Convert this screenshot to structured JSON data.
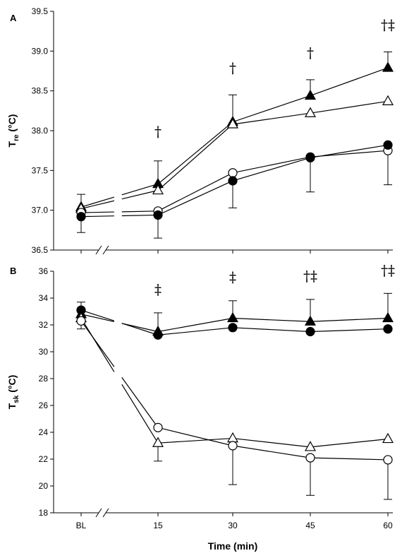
{
  "chart_data": [
    {
      "panel": "A",
      "type": "line",
      "ylabel": "T",
      "ylabel_sub": "re",
      "ylabel_unit": "(°C)",
      "ylim": [
        36.5,
        39.5
      ],
      "yticks": [
        "36.5",
        "37.0",
        "37.5",
        "38.0",
        "38.5",
        "39.0",
        "39.5"
      ],
      "categories": [
        "BL",
        "15",
        "30",
        "45",
        "60"
      ],
      "xlabel": "",
      "series": [
        {
          "marker": "triangle-filled",
          "values": [
            37.04,
            37.33,
            38.11,
            38.44,
            38.79
          ],
          "error": [
            0.16,
            0.29,
            0.34,
            0.2,
            0.2
          ],
          "error_dir": "up"
        },
        {
          "marker": "triangle-open",
          "values": [
            37.02,
            37.25,
            38.08,
            38.22,
            38.37
          ],
          "error": [
            0,
            0,
            0,
            0,
            0
          ],
          "error_dir": "up"
        },
        {
          "marker": "circle-open",
          "values": [
            36.97,
            36.99,
            37.47,
            37.67,
            37.75
          ],
          "error": [
            0,
            0,
            0,
            0,
            0.43
          ],
          "error_dir": "down"
        },
        {
          "marker": "circle-filled",
          "values": [
            36.92,
            36.94,
            37.37,
            37.66,
            37.82
          ],
          "error": [
            0.2,
            0.29,
            0.34,
            0.43,
            0
          ],
          "error_dir": "down"
        }
      ],
      "annotations": [
        {
          "category": "15",
          "text": "†",
          "y": 37.93
        },
        {
          "category": "30",
          "text": "†",
          "y": 38.73
        },
        {
          "category": "45",
          "text": "†",
          "y": 38.92
        },
        {
          "category": "60",
          "text": "†‡",
          "y": 39.27
        }
      ]
    },
    {
      "panel": "B",
      "type": "line",
      "ylabel": "T",
      "ylabel_sub": "sk",
      "ylabel_unit": "(°C)",
      "ylim": [
        18,
        36
      ],
      "yticks": [
        "18",
        "20",
        "22",
        "24",
        "26",
        "28",
        "30",
        "32",
        "34",
        "36"
      ],
      "categories": [
        "BL",
        "15",
        "30",
        "45",
        "60"
      ],
      "xlabel": "Time (min)",
      "series": [
        {
          "marker": "triangle-filled",
          "values": [
            32.8,
            31.5,
            32.5,
            32.25,
            32.5
          ],
          "error": [
            0.9,
            1.4,
            1.3,
            1.65,
            1.85
          ],
          "error_dir": "up"
        },
        {
          "marker": "circle-filled",
          "values": [
            33.1,
            31.25,
            31.8,
            31.5,
            31.7
          ],
          "error": [
            0,
            0,
            0,
            0,
            0
          ],
          "error_dir": "up"
        },
        {
          "marker": "triangle-open",
          "values": [
            32.5,
            23.2,
            23.55,
            22.9,
            23.5
          ],
          "error": [
            0,
            1.35,
            0,
            0,
            0
          ],
          "error_dir": "down"
        },
        {
          "marker": "circle-open",
          "values": [
            32.3,
            24.35,
            23.0,
            22.1,
            21.95
          ],
          "error": [
            0.6,
            0,
            2.9,
            2.8,
            2.95
          ],
          "error_dir": "down"
        }
      ],
      "annotations": [
        {
          "category": "15",
          "text": "‡",
          "y": 34.3
        },
        {
          "category": "30",
          "text": "‡",
          "y": 35.2
        },
        {
          "category": "45",
          "text": "†‡",
          "y": 35.3
        },
        {
          "category": "60",
          "text": "†‡",
          "y": 35.7
        }
      ]
    }
  ]
}
